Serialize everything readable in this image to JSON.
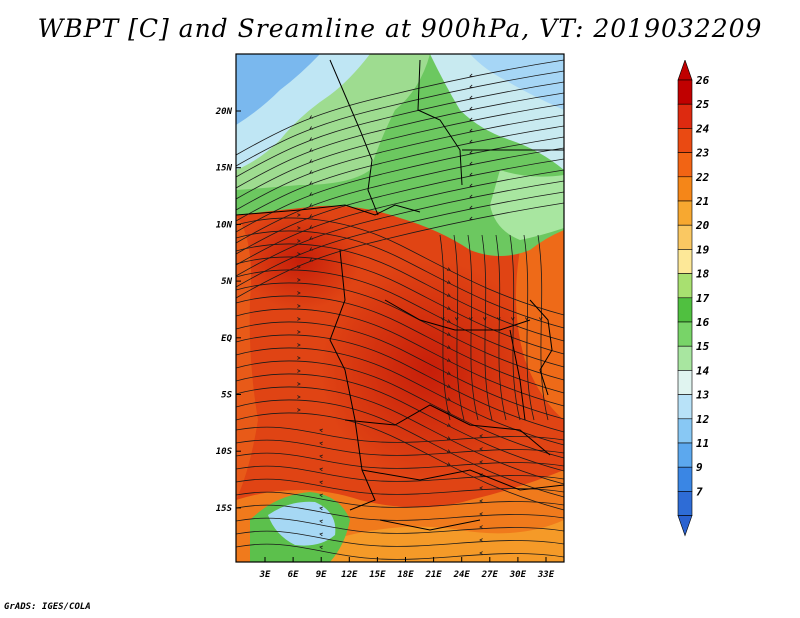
{
  "title": "WBPT [C] and Sreamline at 900hPa, VT: 2019032209",
  "credit": "GrADS: IGES/COLA",
  "map": {
    "lon_labels": [
      "3E",
      "6E",
      "9E",
      "12E",
      "15E",
      "18E",
      "21E",
      "24E",
      "27E",
      "30E",
      "33E"
    ],
    "lat_labels": [
      "20N",
      "15N",
      "10N",
      "5N",
      "EQ",
      "5S",
      "10S",
      "15S"
    ]
  },
  "colorbar": {
    "labels": [
      "26",
      "25",
      "24",
      "23",
      "22",
      "21",
      "20",
      "19",
      "18",
      "17",
      "16",
      "15",
      "14",
      "13",
      "12",
      "11",
      "9",
      "7"
    ],
    "colors": [
      "#c00000",
      "#dd2a10",
      "#ea4a12",
      "#f26414",
      "#f58618",
      "#f7a830",
      "#fac862",
      "#fde898",
      "#a8e070",
      "#50c040",
      "#78d468",
      "#a8e6a0",
      "#e0f4f0",
      "#b8e2f8",
      "#88c8f4",
      "#5ca8ee",
      "#3a86e4",
      "#2e6cd6"
    ]
  }
}
